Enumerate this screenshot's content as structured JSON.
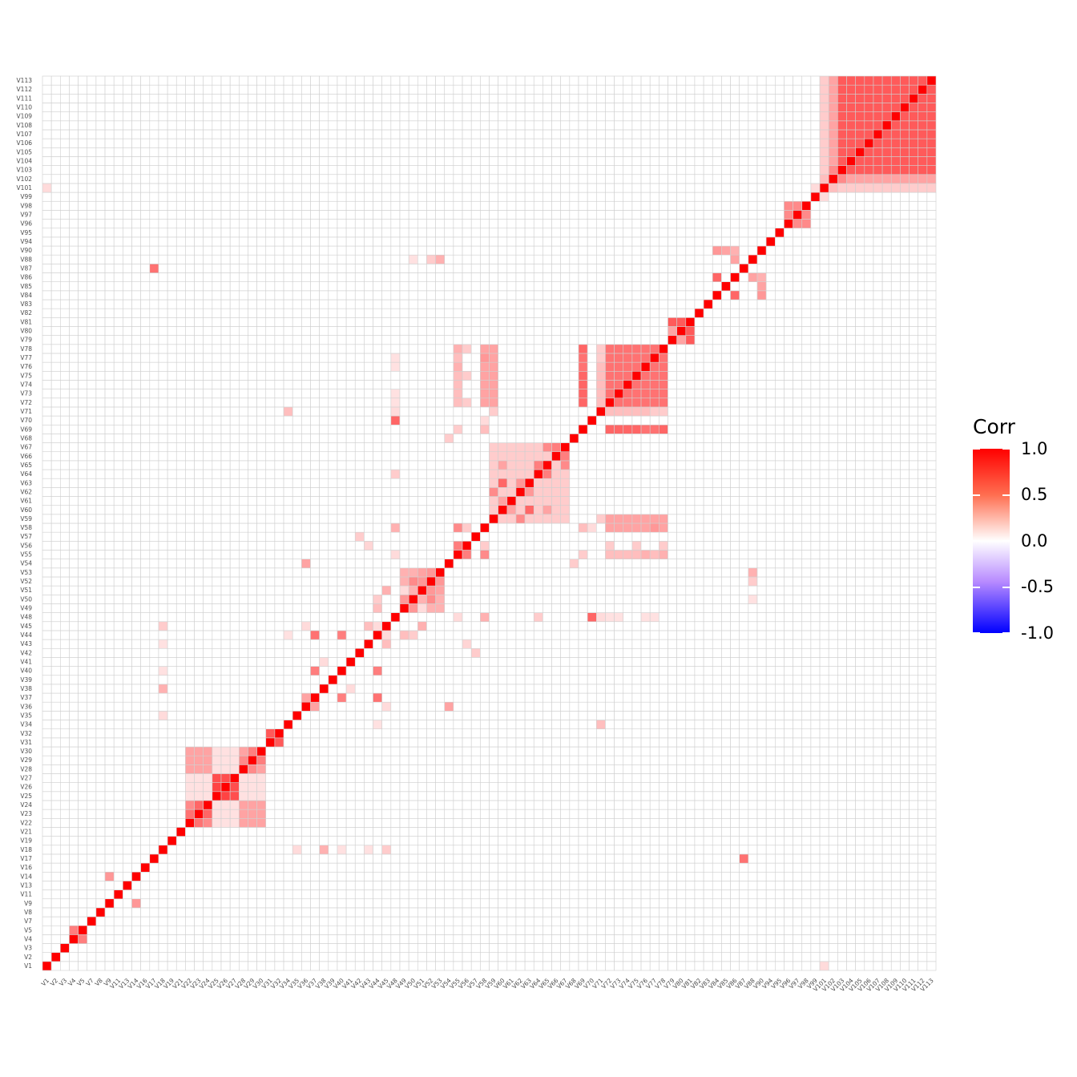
{
  "chart_data": {
    "type": "heatmap",
    "variables": [
      "V1",
      "V2",
      "V3",
      "V4",
      "V5",
      "V7",
      "V8",
      "V9",
      "V11",
      "V13",
      "V14",
      "V16",
      "V17",
      "V18",
      "V19",
      "V21",
      "V22",
      "V23",
      "V24",
      "V25",
      "V26",
      "V27",
      "V28",
      "V29",
      "V30",
      "V31",
      "V32",
      "V34",
      "V35",
      "V36",
      "V37",
      "V38",
      "V39",
      "V40",
      "V41",
      "V42",
      "V43",
      "V44",
      "V45",
      "V48",
      "V49",
      "V50",
      "V51",
      "V52",
      "V53",
      "V54",
      "V55",
      "V56",
      "V57",
      "V58",
      "V59",
      "V60",
      "V61",
      "V62",
      "V63",
      "V64",
      "V65",
      "V66",
      "V67",
      "V68",
      "V69",
      "V70",
      "V71",
      "V72",
      "V73",
      "V74",
      "V75",
      "V76",
      "V77",
      "V78",
      "V79",
      "V80",
      "V81",
      "V82",
      "V83",
      "V84",
      "V85",
      "V86",
      "V87",
      "V88",
      "V90",
      "V94",
      "V95",
      "V96",
      "V97",
      "V98",
      "V99",
      "V101",
      "V102",
      "V103",
      "V104",
      "V105",
      "V106",
      "V107",
      "V108",
      "V109",
      "V110",
      "V111",
      "V112",
      "V113"
    ],
    "diagonal": 1.0,
    "default_value": 0.0,
    "blocks": [
      {
        "from": "V22",
        "to": "V30",
        "value": 0.3
      },
      {
        "from": "V25",
        "to": "V27",
        "value": 0.65
      },
      {
        "from": "V31",
        "to": "V32",
        "value": 0.6
      },
      {
        "from": "V49",
        "to": "V53",
        "value": 0.25
      },
      {
        "from": "V59",
        "to": "V67",
        "value": 0.15
      },
      {
        "from": "V72",
        "to": "V78",
        "value": 0.5
      },
      {
        "from": "V79",
        "to": "V81",
        "value": 0.6
      },
      {
        "from": "V96",
        "to": "V98",
        "value": 0.4
      },
      {
        "from": "V103",
        "to": "V113",
        "value": 0.6
      }
    ],
    "pairs": [
      {
        "a": "V4",
        "b": "V5",
        "value": 0.45
      },
      {
        "a": "V9",
        "b": "V14",
        "value": 0.35
      },
      {
        "a": "V17",
        "b": "V87",
        "value": 0.5
      },
      {
        "a": "V18",
        "b": "V38",
        "value": 0.25
      },
      {
        "a": "V18",
        "b": "V35",
        "value": 0.1
      },
      {
        "a": "V18",
        "b": "V45",
        "value": 0.15
      },
      {
        "a": "V18",
        "b": "V43",
        "value": 0.08
      },
      {
        "a": "V18",
        "b": "V40",
        "value": 0.08
      },
      {
        "a": "V36",
        "b": "V37",
        "value": 0.3
      },
      {
        "a": "V37",
        "b": "V40",
        "value": 0.45
      },
      {
        "a": "V37",
        "b": "V44",
        "value": 0.5
      },
      {
        "a": "V36",
        "b": "V54",
        "value": 0.3
      },
      {
        "a": "V36",
        "b": "V45",
        "value": 0.1
      },
      {
        "a": "V38",
        "b": "V41",
        "value": 0.1
      },
      {
        "a": "V40",
        "b": "V44",
        "value": 0.45
      },
      {
        "a": "V43",
        "b": "V45",
        "value": 0.2
      },
      {
        "a": "V44",
        "b": "V45",
        "value": 0.1
      },
      {
        "a": "V44",
        "b": "V49",
        "value": 0.2
      },
      {
        "a": "V44",
        "b": "V50",
        "value": 0.15
      },
      {
        "a": "V45",
        "b": "V51",
        "value": 0.25
      },
      {
        "a": "V48",
        "b": "V70",
        "value": 0.55
      },
      {
        "a": "V48",
        "b": "V58",
        "value": 0.25
      },
      {
        "a": "V48",
        "b": "V55",
        "value": 0.1
      },
      {
        "a": "V48",
        "b": "V64",
        "value": 0.15
      },
      {
        "a": "V48",
        "b": "V71",
        "value": 0.1
      },
      {
        "a": "V48",
        "b": "V72",
        "value": 0.08
      },
      {
        "a": "V48",
        "b": "V73",
        "value": 0.08
      },
      {
        "a": "V48",
        "b": "V76",
        "value": 0.08
      },
      {
        "a": "V48",
        "b": "V77",
        "value": 0.08
      },
      {
        "a": "V49",
        "b": "V50",
        "value": 0.35
      },
      {
        "a": "V49",
        "b": "V51",
        "value": 0.1
      },
      {
        "a": "V50",
        "b": "V52",
        "value": 0.4
      },
      {
        "a": "V51",
        "b": "V52",
        "value": 0.35
      },
      {
        "a": "V51",
        "b": "V53",
        "value": 0.3
      },
      {
        "a": "V52",
        "b": "V53",
        "value": 0.35
      },
      {
        "a": "V52",
        "b": "V88",
        "value": 0.15
      },
      {
        "a": "V53",
        "b": "V88",
        "value": 0.25
      },
      {
        "a": "V50",
        "b": "V88",
        "value": 0.08
      },
      {
        "a": "V55",
        "b": "V56",
        "value": 0.45
      },
      {
        "a": "V55",
        "b": "V58",
        "value": 0.4
      },
      {
        "a": "V56",
        "b": "V58",
        "value": 0.15
      },
      {
        "a": "V56",
        "b": "V43",
        "value": 0.12
      },
      {
        "a": "V57",
        "b": "V42",
        "value": 0.15
      },
      {
        "a": "V59",
        "b": "V62",
        "value": 0.4
      },
      {
        "a": "V60",
        "b": "V63",
        "value": 0.55
      },
      {
        "a": "V60",
        "b": "V61",
        "value": 0.3
      },
      {
        "a": "V62",
        "b": "V63",
        "value": 0.35
      },
      {
        "a": "V64",
        "b": "V65",
        "value": 0.45
      },
      {
        "a": "V65",
        "b": "V67",
        "value": 0.4
      },
      {
        "a": "V66",
        "b": "V67",
        "value": 0.45
      },
      {
        "a": "V60",
        "b": "V65",
        "value": 0.3
      },
      {
        "a": "V58",
        "b": "V69",
        "value": 0.2
      },
      {
        "a": "V58",
        "b": "V72",
        "value": 0.3
      },
      {
        "a": "V58",
        "b": "V73",
        "value": 0.3
      },
      {
        "a": "V58",
        "b": "V74",
        "value": 0.3
      },
      {
        "a": "V58",
        "b": "V75",
        "value": 0.3
      },
      {
        "a": "V58",
        "b": "V76",
        "value": 0.3
      },
      {
        "a": "V58",
        "b": "V77",
        "value": 0.35
      },
      {
        "a": "V58",
        "b": "V78",
        "value": 0.3
      },
      {
        "a": "V58",
        "b": "V70",
        "value": 0.1
      },
      {
        "a": "V55",
        "b": "V69",
        "value": 0.15
      },
      {
        "a": "V55",
        "b": "V72",
        "value": 0.2
      },
      {
        "a": "V55",
        "b": "V73",
        "value": 0.2
      },
      {
        "a": "V55",
        "b": "V74",
        "value": 0.2
      },
      {
        "a": "V55",
        "b": "V75",
        "value": 0.2
      },
      {
        "a": "V55",
        "b": "V76",
        "value": 0.25
      },
      {
        "a": "V55",
        "b": "V77",
        "value": 0.2
      },
      {
        "a": "V55",
        "b": "V78",
        "value": 0.25
      },
      {
        "a": "V59",
        "b": "V71",
        "value": 0.15
      },
      {
        "a": "V59",
        "b": "V72",
        "value": 0.3
      },
      {
        "a": "V59",
        "b": "V73",
        "value": 0.3
      },
      {
        "a": "V59",
        "b": "V74",
        "value": 0.3
      },
      {
        "a": "V59",
        "b": "V75",
        "value": 0.3
      },
      {
        "a": "V59",
        "b": "V76",
        "value": 0.3
      },
      {
        "a": "V59",
        "b": "V77",
        "value": 0.3
      },
      {
        "a": "V59",
        "b": "V78",
        "value": 0.3
      },
      {
        "a": "V56",
        "b": "V72",
        "value": 0.15
      },
      {
        "a": "V56",
        "b": "V75",
        "value": 0.15
      },
      {
        "a": "V56",
        "b": "V78",
        "value": 0.15
      },
      {
        "a": "V68",
        "b": "V54",
        "value": 0.15
      },
      {
        "a": "V69",
        "b": "V72",
        "value": 0.55
      },
      {
        "a": "V69",
        "b": "V73",
        "value": 0.55
      },
      {
        "a": "V69",
        "b": "V74",
        "value": 0.55
      },
      {
        "a": "V69",
        "b": "V75",
        "value": 0.55
      },
      {
        "a": "V69",
        "b": "V76",
        "value": 0.5
      },
      {
        "a": "V69",
        "b": "V77",
        "value": 0.5
      },
      {
        "a": "V69",
        "b": "V78",
        "value": 0.55
      },
      {
        "a": "V71",
        "b": "V72",
        "value": 0.2
      },
      {
        "a": "V71",
        "b": "V73",
        "value": 0.2
      },
      {
        "a": "V71",
        "b": "V74",
        "value": 0.2
      },
      {
        "a": "V71",
        "b": "V75",
        "value": 0.2
      },
      {
        "a": "V71",
        "b": "V76",
        "value": 0.2
      },
      {
        "a": "V71",
        "b": "V77",
        "value": 0.15
      },
      {
        "a": "V71",
        "b": "V78",
        "value": 0.15
      },
      {
        "a": "V71",
        "b": "V34",
        "value": 0.2
      },
      {
        "a": "V34",
        "b": "V44",
        "value": 0.08
      },
      {
        "a": "V79",
        "b": "V80",
        "value": 0.3
      },
      {
        "a": "V84",
        "b": "V86",
        "value": 0.55
      },
      {
        "a": "V84",
        "b": "V90",
        "value": 0.35
      },
      {
        "a": "V85",
        "b": "V90",
        "value": 0.3
      },
      {
        "a": "V86",
        "b": "V90",
        "value": 0.25
      },
      {
        "a": "V86",
        "b": "V88",
        "value": 0.3
      },
      {
        "a": "V99",
        "b": "V101",
        "value": 0.1
      },
      {
        "a": "V101",
        "b": "V102",
        "value": 0.2
      },
      {
        "a": "V101",
        "b": "V103",
        "value": 0.15
      },
      {
        "a": "V101",
        "b": "V104",
        "value": 0.15
      },
      {
        "a": "V101",
        "b": "V105",
        "value": 0.15
      },
      {
        "a": "V101",
        "b": "V106",
        "value": 0.15
      },
      {
        "a": "V101",
        "b": "V107",
        "value": 0.15
      },
      {
        "a": "V101",
        "b": "V108",
        "value": 0.15
      },
      {
        "a": "V101",
        "b": "V109",
        "value": 0.15
      },
      {
        "a": "V101",
        "b": "V110",
        "value": 0.15
      },
      {
        "a": "V101",
        "b": "V111",
        "value": 0.15
      },
      {
        "a": "V101",
        "b": "V112",
        "value": 0.15
      },
      {
        "a": "V101",
        "b": "V113",
        "value": 0.15
      },
      {
        "a": "V102",
        "b": "V103",
        "value": 0.4
      },
      {
        "a": "V102",
        "b": "V104",
        "value": 0.3
      },
      {
        "a": "V102",
        "b": "V105",
        "value": 0.3
      },
      {
        "a": "V102",
        "b": "V106",
        "value": 0.3
      },
      {
        "a": "V102",
        "b": "V107",
        "value": 0.3
      },
      {
        "a": "V102",
        "b": "V108",
        "value": 0.3
      },
      {
        "a": "V102",
        "b": "V109",
        "value": 0.3
      },
      {
        "a": "V102",
        "b": "V110",
        "value": 0.3
      },
      {
        "a": "V102",
        "b": "V111",
        "value": 0.3
      },
      {
        "a": "V102",
        "b": "V112",
        "value": 0.3
      },
      {
        "a": "V102",
        "b": "V113",
        "value": 0.3
      },
      {
        "a": "V1",
        "b": "V101",
        "value": 0.1
      },
      {
        "a": "V22",
        "b": "V23",
        "value": 0.5
      },
      {
        "a": "V23",
        "b": "V24",
        "value": 0.55
      },
      {
        "a": "V22",
        "b": "V24",
        "value": 0.4
      },
      {
        "a": "V28",
        "b": "V29",
        "value": 0.4
      },
      {
        "a": "V29",
        "b": "V30",
        "value": 0.45
      },
      {
        "a": "V22",
        "b": "V25",
        "value": 0.08
      },
      {
        "a": "V22",
        "b": "V26",
        "value": 0.08
      },
      {
        "a": "V22",
        "b": "V27",
        "value": 0.08
      },
      {
        "a": "V23",
        "b": "V25",
        "value": 0.08
      },
      {
        "a": "V23",
        "b": "V26",
        "value": 0.08
      },
      {
        "a": "V23",
        "b": "V27",
        "value": 0.08
      },
      {
        "a": "V25",
        "b": "V28",
        "value": 0.08
      },
      {
        "a": "V25",
        "b": "V29",
        "value": 0.08
      },
      {
        "a": "V25",
        "b": "V30",
        "value": 0.08
      },
      {
        "a": "V26",
        "b": "V28",
        "value": 0.08
      },
      {
        "a": "V26",
        "b": "V29",
        "value": 0.08
      },
      {
        "a": "V26",
        "b": "V30",
        "value": 0.08
      },
      {
        "a": "V27",
        "b": "V28",
        "value": 0.08
      },
      {
        "a": "V27",
        "b": "V29",
        "value": 0.08
      },
      {
        "a": "V27",
        "b": "V30",
        "value": 0.08
      },
      {
        "a": "V24",
        "b": "V25",
        "value": 0.08
      },
      {
        "a": "V24",
        "b": "V26",
        "value": 0.08
      },
      {
        "a": "V24",
        "b": "V27",
        "value": 0.08
      },
      {
        "a": "V25",
        "b": "V26",
        "value": 0.7
      },
      {
        "a": "V26",
        "b": "V27",
        "value": 0.65
      }
    ],
    "color_scale": {
      "low": "#0000ff",
      "mid": "#ffffff",
      "high": "#ff0000",
      "limits": [
        -1,
        1
      ]
    },
    "legend": {
      "title": "Corr",
      "ticks": [
        "1.0",
        "0.5",
        "0.0",
        "-0.5",
        "-1.0"
      ],
      "position": "right"
    },
    "grid": true
  }
}
